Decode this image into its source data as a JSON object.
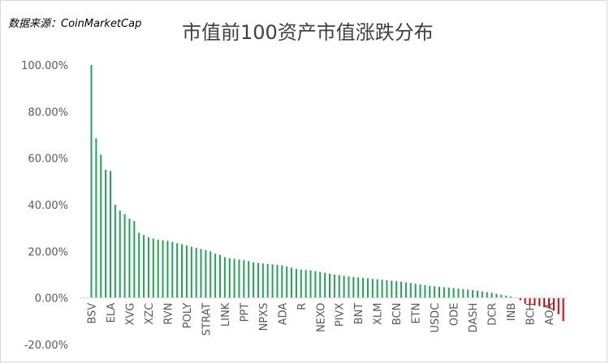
{
  "source_label": "数据来源：CoinMarketCap",
  "chart_data": {
    "type": "bar",
    "title": "市值前100资产市值涨跌分布",
    "xlabel": "",
    "ylabel": "",
    "ylim": [
      -0.2,
      1.0
    ],
    "yticks": [
      -0.2,
      0.0,
      0.2,
      0.4,
      0.6,
      0.8,
      1.0
    ],
    "ytick_labels": [
      "-20.00%",
      "0.00%",
      "20.00%",
      "40.00%",
      "60.00%",
      "80.00%",
      "100.00%"
    ],
    "grid": false,
    "legend": "none",
    "positive_color": "#21a356",
    "negative_color": "#e00000",
    "category_labels": [
      "BSV",
      "ELA",
      "XVG",
      "XZC",
      "RVN",
      "POLY",
      "STRAT",
      "LINK",
      "PPT",
      "NPXS",
      "ADA",
      "R",
      "NEXO",
      "PIVX",
      "BNT",
      "XLM",
      "BCN",
      "ETN",
      "USDC",
      "ODE",
      "DASH",
      "DCR",
      "INB",
      "BCH",
      "AOA"
    ],
    "values": [
      1.0,
      0.685,
      0.615,
      0.55,
      0.545,
      0.4,
      0.375,
      0.36,
      0.34,
      0.33,
      0.28,
      0.27,
      0.26,
      0.255,
      0.25,
      0.248,
      0.245,
      0.24,
      0.235,
      0.23,
      0.225,
      0.22,
      0.215,
      0.21,
      0.205,
      0.2,
      0.19,
      0.185,
      0.175,
      0.17,
      0.168,
      0.165,
      0.162,
      0.158,
      0.152,
      0.15,
      0.148,
      0.146,
      0.144,
      0.142,
      0.14,
      0.135,
      0.13,
      0.125,
      0.122,
      0.12,
      0.118,
      0.115,
      0.112,
      0.108,
      0.104,
      0.1,
      0.098,
      0.095,
      0.092,
      0.09,
      0.088,
      0.086,
      0.084,
      0.082,
      0.08,
      0.078,
      0.076,
      0.074,
      0.072,
      0.07,
      0.067,
      0.064,
      0.061,
      0.058,
      0.055,
      0.052,
      0.05,
      0.048,
      0.046,
      0.044,
      0.042,
      0.04,
      0.038,
      0.036,
      0.034,
      0.031,
      0.028,
      0.025,
      0.022,
      0.018,
      0.014,
      0.01,
      0.006,
      0.002,
      -0.01,
      -0.025,
      -0.03,
      -0.032,
      -0.035,
      -0.04,
      -0.045,
      -0.055,
      -0.07,
      -0.1
    ]
  }
}
